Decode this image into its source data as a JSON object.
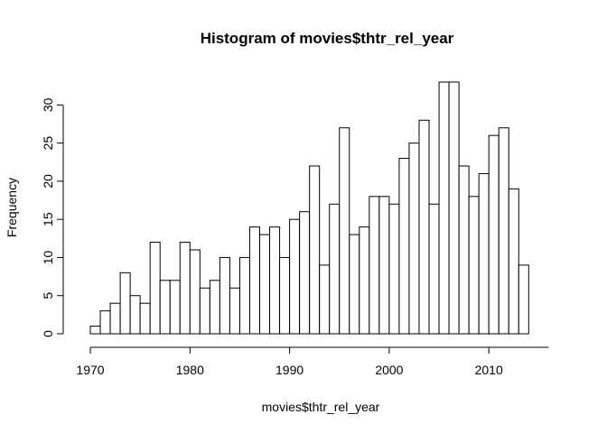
{
  "chart_data": {
    "type": "bar",
    "title": "Histogram of movies$thtr_rel_year",
    "xlabel": "movies$thtr_rel_year",
    "ylabel": "Frequency",
    "bin_width": 1,
    "bin_starts": [
      1970,
      1971,
      1972,
      1973,
      1974,
      1975,
      1976,
      1977,
      1978,
      1979,
      1980,
      1981,
      1982,
      1983,
      1984,
      1985,
      1986,
      1987,
      1988,
      1989,
      1990,
      1991,
      1992,
      1993,
      1994,
      1995,
      1996,
      1997,
      1998,
      1999,
      2000,
      2001,
      2002,
      2003,
      2004,
      2005,
      2006,
      2007,
      2008,
      2009,
      2010,
      2011,
      2012,
      2013
    ],
    "values": [
      1,
      3,
      4,
      8,
      5,
      4,
      12,
      7,
      7,
      12,
      11,
      6,
      7,
      10,
      6,
      10,
      14,
      13,
      14,
      10,
      15,
      16,
      22,
      9,
      17,
      27,
      13,
      14,
      18,
      18,
      17,
      23,
      25,
      28,
      17,
      33,
      33,
      22,
      18,
      21,
      26,
      27,
      19,
      9
    ],
    "xlim": [
      1970,
      2016
    ],
    "ylim": [
      0,
      33
    ],
    "x_ticks": [
      1970,
      1980,
      1990,
      2000,
      2010
    ],
    "y_ticks": [
      0,
      5,
      10,
      15,
      20,
      25,
      30
    ],
    "grid": false,
    "bar_fill": "#ffffff",
    "bar_stroke": "#000000"
  }
}
